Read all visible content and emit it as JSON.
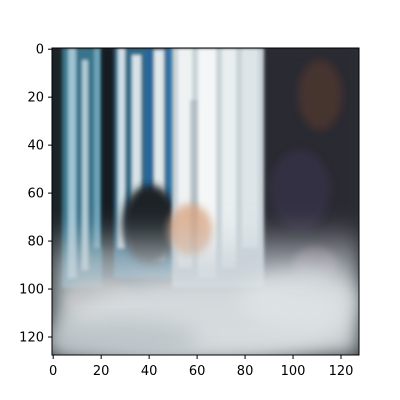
{
  "image": {
    "subject": "waterfall",
    "axes": {
      "x": {
        "range": [
          0,
          128
        ],
        "ticks": [
          0,
          20,
          40,
          60,
          80,
          100,
          120
        ]
      },
      "y": {
        "range": [
          0,
          128
        ],
        "ticks": [
          0,
          20,
          40,
          60,
          80,
          100,
          120
        ],
        "inverted": true
      }
    },
    "palette": {
      "dark_rock": "#1f2a2e",
      "deep_shadow": "#141c20",
      "teal_water": "#3f7f95",
      "blue_streak": "#2d6f9a",
      "white_water": "#d9e2e6",
      "mist": "#c7cfd4",
      "warm_spray": "#d9a07a",
      "violet_tint": "#8f88a8"
    }
  }
}
